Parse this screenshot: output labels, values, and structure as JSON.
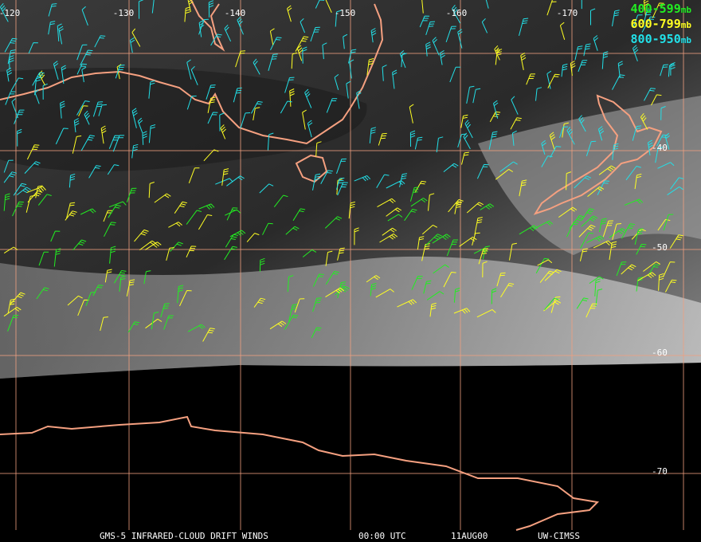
{
  "map": {
    "longitude_labels": [
      "-120",
      "-130",
      "-140",
      "-150",
      "-160",
      "-170"
    ],
    "latitude_labels": [
      "-40",
      "-50",
      "-60",
      "-70"
    ],
    "legend": [
      {
        "range": "400-599",
        "unit": "mb",
        "color": "#22ee22"
      },
      {
        "range": "600-799",
        "unit": "mb",
        "color": "#ffff22"
      },
      {
        "range": "800-950",
        "unit": "mb",
        "color": "#22e0e8"
      }
    ],
    "footer": {
      "product": "GMS-5 INFRARED-CLOUD DRIFT WINDS",
      "time": "00:00 UTC",
      "date": "11AUG00",
      "source": "UW-CIMSS"
    }
  }
}
